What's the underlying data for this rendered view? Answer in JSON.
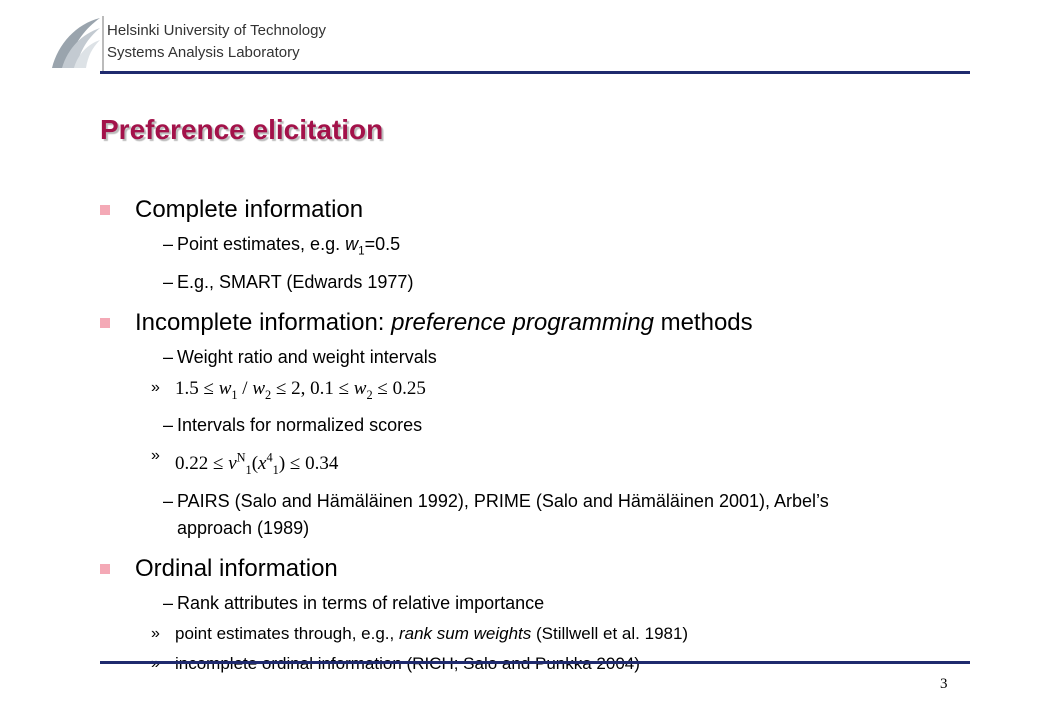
{
  "header": {
    "org": "Helsinki University of Technology",
    "lab": "Systems Analysis Laboratory"
  },
  "title": "Preference elicitation",
  "markers": [
    "–",
    "»"
  ],
  "bullets": [
    {
      "text": [
        "Complete information"
      ],
      "items": [
        {
          "text": [
            "Point estimates, e.g. ",
            {
              "italic": "w"
            },
            {
              "sub": "1"
            },
            "=0.5"
          ]
        },
        {
          "text": [
            "E.g., SMART (Edwards 1977)"
          ]
        }
      ]
    },
    {
      "text": [
        "Incomplete information: ",
        {
          "italic": "preference programming"
        },
        " methods"
      ],
      "items": [
        {
          "text": [
            "Weight ratio and weight intervals"
          ],
          "items": [
            {
              "formula": [
                "1.5 ≤ ",
                {
                  "italic": "w"
                },
                {
                  "sub": "1"
                },
                " / ",
                {
                  "italic": "w"
                },
                {
                  "sub": "2"
                },
                " ≤ 2,    0.1 ≤ ",
                {
                  "italic": "w"
                },
                {
                  "sub": "2"
                },
                " ≤ 0.25"
              ]
            }
          ]
        },
        {
          "text": [
            "Intervals for normalized scores"
          ],
          "items": [
            {
              "formula": [
                "0.22 ≤ ",
                {
                  "italic": "v"
                },
                {
                  "sup": "N"
                },
                {
                  "sub": "1"
                },
                "(",
                {
                  "italic": "x"
                },
                {
                  "sup": "4"
                },
                {
                  "sub": "1"
                },
                ") ≤ 0.34"
              ]
            }
          ]
        },
        {
          "text": [
            "PAIRS (Salo and Hämäläinen 1992), PRIME (Salo and Hämäläinen 2001), Arbel’s approach (1989)"
          ]
        }
      ]
    },
    {
      "text": [
        "Ordinal information"
      ],
      "items": [
        {
          "text": [
            "Rank attributes in terms of relative importance"
          ],
          "items": [
            {
              "text": [
                "point estimates through, e.g., ",
                {
                  "italic": "rank sum weights"
                },
                " (Stillwell et al. 1981)"
              ]
            },
            {
              "text": [
                "incomplete ordinal information (RICH; Salo and Punkka 2004)"
              ]
            }
          ]
        }
      ]
    }
  ],
  "page_number": "3"
}
